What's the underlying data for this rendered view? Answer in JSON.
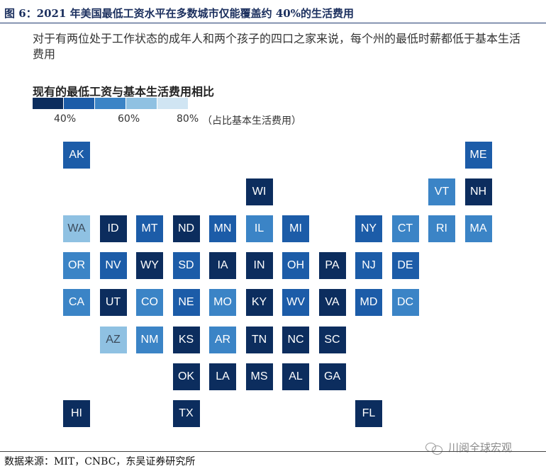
{
  "figure": {
    "title": "图 6：2021 年美国最低工资水平在多数城市仅能覆盖约 40%的生活费用",
    "subtitle": "对于有两位处于工作状态的成年人和两个孩子的四口之家来说，每个州的最低时薪都低于基本生活费用",
    "source": "数据来源：MIT，CNBC，东吴证券研究所",
    "watermark": "川阅全球宏观"
  },
  "colors": {
    "scale": [
      "#0c2d5e",
      "#1c5ca8",
      "#3b84c6",
      "#8fc1e2",
      "#d0e5f3"
    ]
  },
  "chart_data": {
    "type": "heatmap",
    "title": "现有的最低工资与基本生活费用相比",
    "legend": {
      "tick_labels": [
        "40%",
        "60%",
        "80%"
      ],
      "unit_note": "（占比基本生活费用）"
    },
    "grid": [
      {
        "state": "AK",
        "row": 0,
        "col": 0,
        "bin": 1
      },
      {
        "state": "ME",
        "row": 0,
        "col": 11,
        "bin": 1
      },
      {
        "state": "WI",
        "row": 1,
        "col": 5,
        "bin": 0
      },
      {
        "state": "VT",
        "row": 1,
        "col": 10,
        "bin": 2
      },
      {
        "state": "NH",
        "row": 1,
        "col": 11,
        "bin": 0
      },
      {
        "state": "WA",
        "row": 2,
        "col": 0,
        "bin": 3
      },
      {
        "state": "ID",
        "row": 2,
        "col": 1,
        "bin": 0
      },
      {
        "state": "MT",
        "row": 2,
        "col": 2,
        "bin": 1
      },
      {
        "state": "ND",
        "row": 2,
        "col": 3,
        "bin": 0
      },
      {
        "state": "MN",
        "row": 2,
        "col": 4,
        "bin": 1
      },
      {
        "state": "IL",
        "row": 2,
        "col": 5,
        "bin": 2
      },
      {
        "state": "MI",
        "row": 2,
        "col": 6,
        "bin": 1
      },
      {
        "state": "NY",
        "row": 2,
        "col": 8,
        "bin": 1
      },
      {
        "state": "CT",
        "row": 2,
        "col": 9,
        "bin": 2
      },
      {
        "state": "RI",
        "row": 2,
        "col": 10,
        "bin": 2
      },
      {
        "state": "MA",
        "row": 2,
        "col": 11,
        "bin": 2
      },
      {
        "state": "OR",
        "row": 3,
        "col": 0,
        "bin": 2
      },
      {
        "state": "NV",
        "row": 3,
        "col": 1,
        "bin": 1
      },
      {
        "state": "WY",
        "row": 3,
        "col": 2,
        "bin": 0
      },
      {
        "state": "SD",
        "row": 3,
        "col": 3,
        "bin": 1
      },
      {
        "state": "IA",
        "row": 3,
        "col": 4,
        "bin": 0
      },
      {
        "state": "IN",
        "row": 3,
        "col": 5,
        "bin": 0
      },
      {
        "state": "OH",
        "row": 3,
        "col": 6,
        "bin": 1
      },
      {
        "state": "PA",
        "row": 3,
        "col": 7,
        "bin": 0
      },
      {
        "state": "NJ",
        "row": 3,
        "col": 8,
        "bin": 1
      },
      {
        "state": "DE",
        "row": 3,
        "col": 9,
        "bin": 1
      },
      {
        "state": "CA",
        "row": 4,
        "col": 0,
        "bin": 2
      },
      {
        "state": "UT",
        "row": 4,
        "col": 1,
        "bin": 0
      },
      {
        "state": "CO",
        "row": 4,
        "col": 2,
        "bin": 2
      },
      {
        "state": "NE",
        "row": 4,
        "col": 3,
        "bin": 1
      },
      {
        "state": "MO",
        "row": 4,
        "col": 4,
        "bin": 2
      },
      {
        "state": "KY",
        "row": 4,
        "col": 5,
        "bin": 0
      },
      {
        "state": "WV",
        "row": 4,
        "col": 6,
        "bin": 1
      },
      {
        "state": "VA",
        "row": 4,
        "col": 7,
        "bin": 0
      },
      {
        "state": "MD",
        "row": 4,
        "col": 8,
        "bin": 1
      },
      {
        "state": "DC",
        "row": 4,
        "col": 9,
        "bin": 2
      },
      {
        "state": "AZ",
        "row": 5,
        "col": 1,
        "bin": 3
      },
      {
        "state": "NM",
        "row": 5,
        "col": 2,
        "bin": 2
      },
      {
        "state": "KS",
        "row": 5,
        "col": 3,
        "bin": 0
      },
      {
        "state": "AR",
        "row": 5,
        "col": 4,
        "bin": 2
      },
      {
        "state": "TN",
        "row": 5,
        "col": 5,
        "bin": 0
      },
      {
        "state": "NC",
        "row": 5,
        "col": 6,
        "bin": 0
      },
      {
        "state": "SC",
        "row": 5,
        "col": 7,
        "bin": 0
      },
      {
        "state": "OK",
        "row": 6,
        "col": 3,
        "bin": 0
      },
      {
        "state": "LA",
        "row": 6,
        "col": 4,
        "bin": 0
      },
      {
        "state": "MS",
        "row": 6,
        "col": 5,
        "bin": 0
      },
      {
        "state": "AL",
        "row": 6,
        "col": 6,
        "bin": 0
      },
      {
        "state": "GA",
        "row": 6,
        "col": 7,
        "bin": 0
      },
      {
        "state": "HI",
        "row": 7,
        "col": 0,
        "bin": 0
      },
      {
        "state": "TX",
        "row": 7,
        "col": 3,
        "bin": 0
      },
      {
        "state": "FL",
        "row": 7,
        "col": 8,
        "bin": 0
      }
    ]
  }
}
